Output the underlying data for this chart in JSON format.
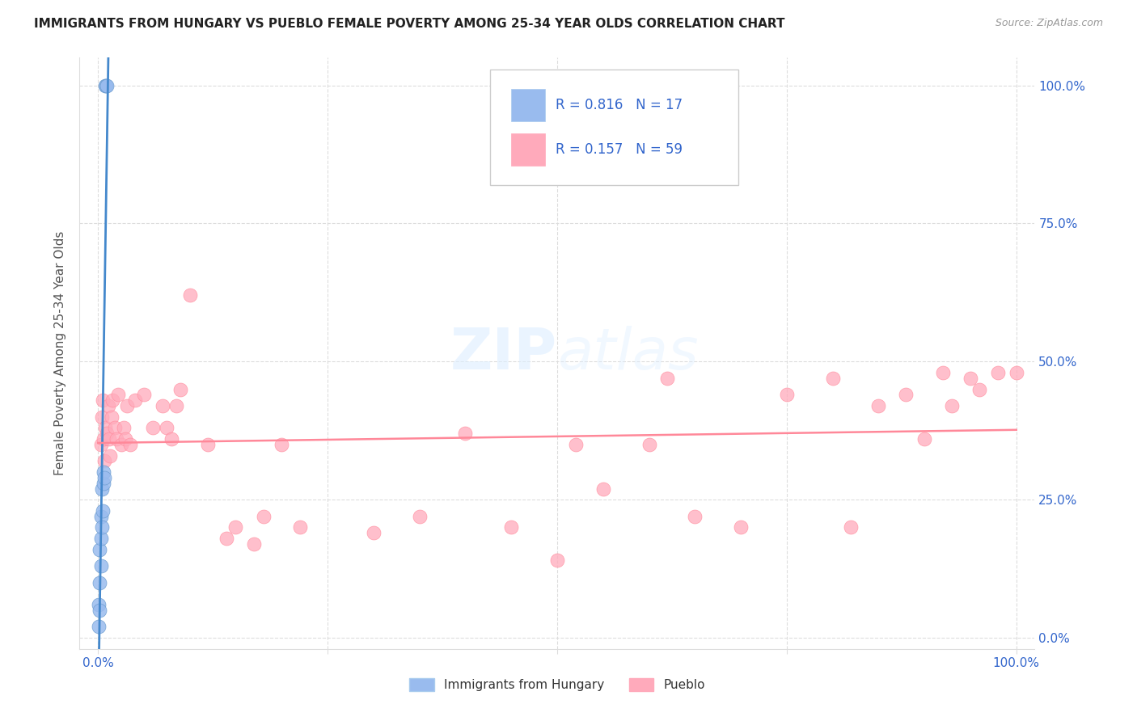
{
  "title": "IMMIGRANTS FROM HUNGARY VS PUEBLO FEMALE POVERTY AMONG 25-34 YEAR OLDS CORRELATION CHART",
  "source": "Source: ZipAtlas.com",
  "ylabel": "Female Poverty Among 25-34 Year Olds",
  "legend_label1": "Immigrants from Hungary",
  "legend_label2": "Pueblo",
  "R1": "0.816",
  "N1": "17",
  "R2": "0.157",
  "N2": "59",
  "color_blue": "#99BBEE",
  "color_pink": "#FFAABB",
  "color_blue_line": "#4488CC",
  "color_pink_line": "#FF8899",
  "blue_x": [
    0.001,
    0.001,
    0.002,
    0.002,
    0.002,
    0.003,
    0.003,
    0.003,
    0.004,
    0.004,
    0.005,
    0.006,
    0.006,
    0.007,
    0.008,
    0.009,
    0.01
  ],
  "blue_y": [
    0.02,
    0.06,
    0.05,
    0.1,
    0.16,
    0.13,
    0.18,
    0.22,
    0.2,
    0.27,
    0.23,
    0.28,
    0.3,
    0.29,
    1.0,
    1.0,
    1.0
  ],
  "pink_x": [
    0.003,
    0.004,
    0.005,
    0.006,
    0.007,
    0.008,
    0.01,
    0.011,
    0.012,
    0.013,
    0.015,
    0.016,
    0.018,
    0.02,
    0.022,
    0.025,
    0.028,
    0.03,
    0.032,
    0.035,
    0.04,
    0.05,
    0.06,
    0.07,
    0.075,
    0.08,
    0.085,
    0.09,
    0.1,
    0.12,
    0.14,
    0.15,
    0.17,
    0.18,
    0.2,
    0.22,
    0.3,
    0.35,
    0.4,
    0.45,
    0.5,
    0.52,
    0.55,
    0.6,
    0.62,
    0.65,
    0.7,
    0.75,
    0.8,
    0.82,
    0.85,
    0.88,
    0.9,
    0.92,
    0.93,
    0.95,
    0.96,
    0.98,
    1.0
  ],
  "pink_y": [
    0.35,
    0.4,
    0.43,
    0.36,
    0.32,
    0.38,
    0.37,
    0.42,
    0.36,
    0.33,
    0.4,
    0.43,
    0.38,
    0.36,
    0.44,
    0.35,
    0.38,
    0.36,
    0.42,
    0.35,
    0.43,
    0.44,
    0.38,
    0.42,
    0.38,
    0.36,
    0.42,
    0.45,
    0.62,
    0.35,
    0.18,
    0.2,
    0.17,
    0.22,
    0.35,
    0.2,
    0.19,
    0.22,
    0.37,
    0.2,
    0.14,
    0.35,
    0.27,
    0.35,
    0.47,
    0.22,
    0.2,
    0.44,
    0.47,
    0.2,
    0.42,
    0.44,
    0.36,
    0.48,
    0.42,
    0.47,
    0.45,
    0.48,
    0.48
  ],
  "xlim": [
    0.0,
    1.0
  ],
  "ylim": [
    0.0,
    1.0
  ],
  "x_ticks": [
    0.0,
    0.25,
    0.5,
    0.75,
    1.0
  ],
  "x_tick_labels": [
    "0.0%",
    "",
    "",
    "",
    "100.0%"
  ],
  "y_ticks": [
    0.0,
    0.25,
    0.5,
    0.75,
    1.0
  ],
  "y_tick_labels_right": [
    "0.0%",
    "25.0%",
    "50.0%",
    "75.0%",
    "100.0%"
  ]
}
